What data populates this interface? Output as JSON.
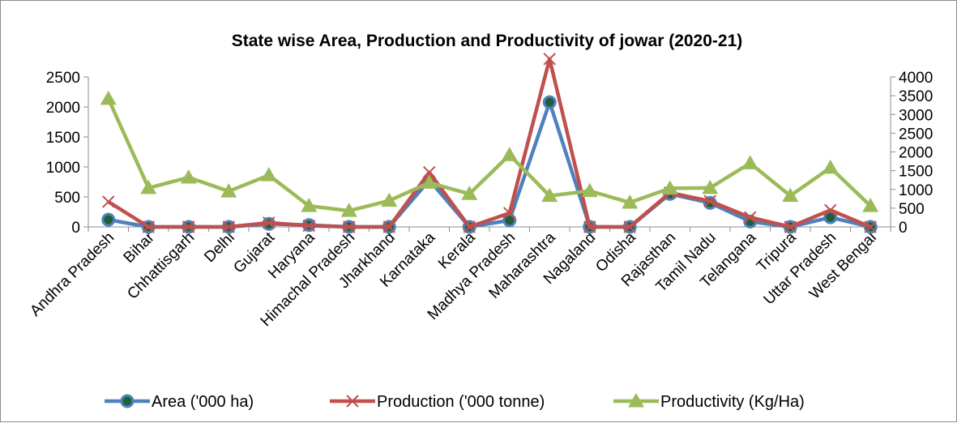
{
  "chart_data": {
    "type": "line",
    "title": "State wise Area, Production and Productivity of jowar (2020-21)",
    "categories": [
      "Andhra Pradesh",
      "Bihar",
      "Chhattisgarh",
      "Delhi",
      "Gujarat",
      "Haryana",
      "Himachal Pradesh",
      "Jharkhand",
      "Karnataka",
      "Kerala",
      "Madhya Pradesh",
      "Maharashtra",
      "Nagaland",
      "Odisha",
      "Rajasthan",
      "Tamil Nadu",
      "Telangana",
      "Tripura",
      "Uttar Pradesh",
      "West Bengal"
    ],
    "y_left": {
      "ylim": [
        0,
        2500
      ],
      "ticks": [
        "0",
        "500",
        "1000",
        "1500",
        "2000",
        "2500"
      ]
    },
    "y_right": {
      "ylim": [
        0,
        4000
      ],
      "ticks": [
        "0",
        "500",
        "1000",
        "1500",
        "2000",
        "2500",
        "3000",
        "3500",
        "4000"
      ]
    },
    "series": [
      {
        "name": "Area ('000 ha)",
        "axis": "left",
        "color": "#4f81bd",
        "marker": "circle",
        "values": [
          120,
          0,
          0,
          0,
          50,
          30,
          0,
          0,
          780,
          0,
          110,
          2080,
          0,
          0,
          550,
          400,
          90,
          0,
          160,
          0
        ]
      },
      {
        "name": "Production ('000 tonne)",
        "axis": "left",
        "color": "#c0504d",
        "marker": "x",
        "values": [
          420,
          0,
          0,
          0,
          70,
          20,
          0,
          0,
          910,
          0,
          230,
          2800,
          0,
          0,
          570,
          430,
          160,
          0,
          280,
          0
        ]
      },
      {
        "name": "Productivity (Kg/Ha)",
        "axis": "right",
        "color": "#9bbb59",
        "marker": "triangle",
        "values": [
          3420,
          1040,
          1320,
          950,
          1380,
          560,
          430,
          700,
          1180,
          880,
          1920,
          830,
          960,
          650,
          1030,
          1040,
          1700,
          830,
          1580,
          560
        ]
      }
    ],
    "grid": false,
    "legend": "bottom"
  }
}
